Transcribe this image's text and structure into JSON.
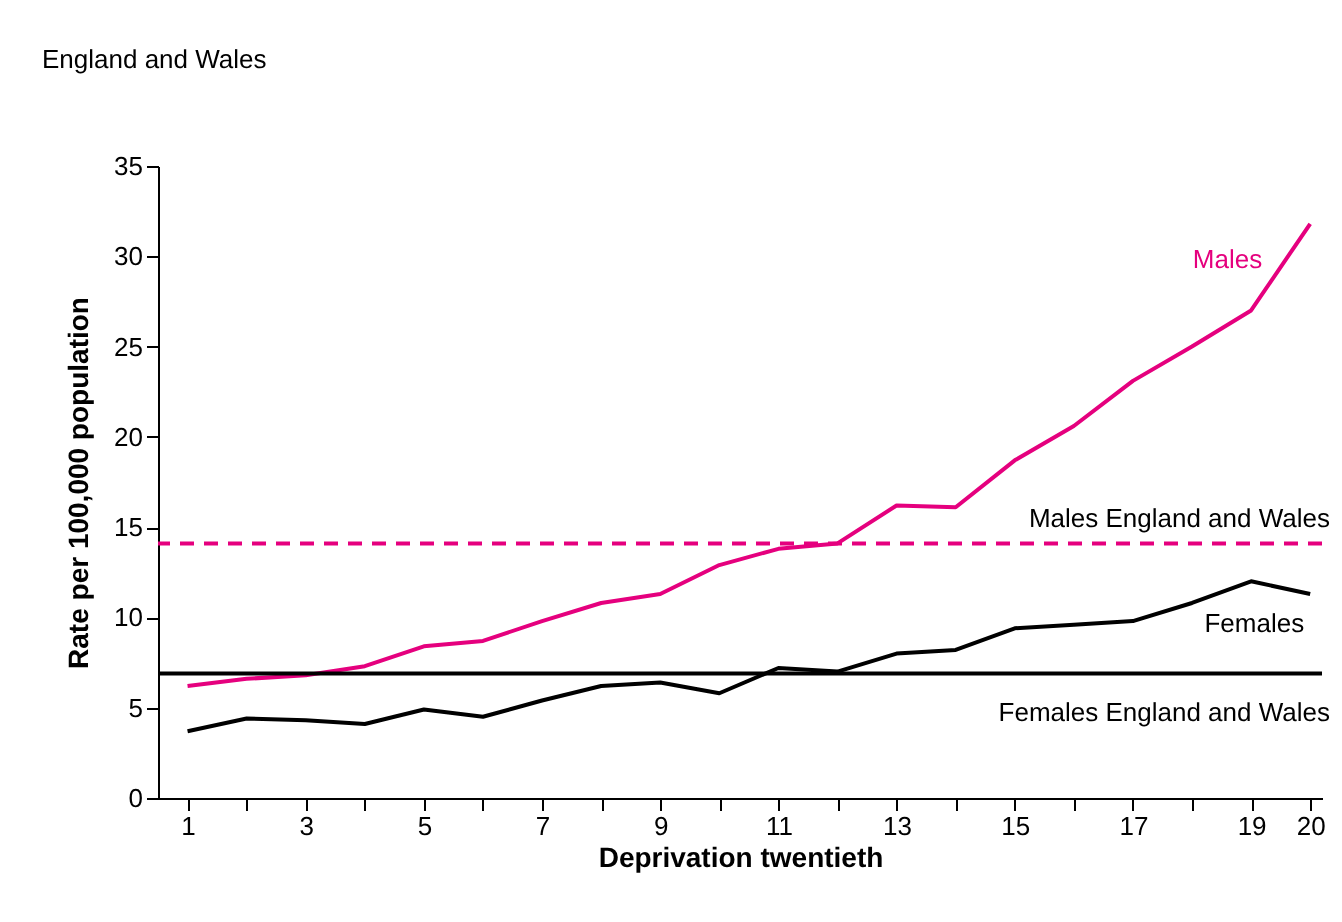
{
  "chart_data": {
    "type": "line",
    "title": "England and Wales",
    "xlabel": "Deprivation twentieth",
    "ylabel": "Rate per 100,000 population",
    "x": [
      1,
      2,
      3,
      4,
      5,
      6,
      7,
      8,
      9,
      10,
      11,
      12,
      13,
      14,
      15,
      16,
      17,
      18,
      19,
      20
    ],
    "series": [
      {
        "name": "Males",
        "color": "#e5007e",
        "values": [
          6.2,
          6.6,
          6.8,
          7.3,
          8.4,
          8.7,
          9.8,
          10.8,
          11.3,
          12.9,
          13.8,
          14.1,
          16.2,
          16.1,
          18.7,
          20.6,
          23.1,
          25.0,
          27.0,
          31.8
        ]
      },
      {
        "name": "Females",
        "color": "#000000",
        "values": [
          3.7,
          4.4,
          4.3,
          4.1,
          4.9,
          4.5,
          5.4,
          6.2,
          6.4,
          5.8,
          7.2,
          7.0,
          8.0,
          8.2,
          9.4,
          9.6,
          9.8,
          10.8,
          12.0,
          11.3
        ]
      }
    ],
    "ref_lines": [
      {
        "axis": "y",
        "value": 14.1,
        "label": "Males England and Wales",
        "color": "#e5007e",
        "line_style": "dashed"
      },
      {
        "axis": "y",
        "value": 6.9,
        "label": "Females England and Wales",
        "color": "#000000",
        "line_style": "solid"
      }
    ],
    "xlim": [
      0.5,
      20.2
    ],
    "xticks": [
      1,
      {
        "value": 2,
        "label": null
      },
      3,
      {
        "value": 4,
        "label": null
      },
      5,
      {
        "value": 6,
        "label": null
      },
      7,
      {
        "value": 8,
        "label": null
      },
      9,
      {
        "value": 10,
        "label": null
      },
      11,
      {
        "value": 12,
        "label": null
      },
      13,
      {
        "value": 14,
        "label": null
      },
      15,
      {
        "value": 16,
        "label": null
      },
      17,
      {
        "value": 18,
        "label": null
      },
      19,
      20
    ],
    "ylim": [
      0,
      35
    ],
    "yticks": [
      0,
      5,
      10,
      15,
      20,
      25,
      30,
      35
    ],
    "grid": false,
    "legend": false,
    "marker": "none",
    "line_style": "solid"
  }
}
